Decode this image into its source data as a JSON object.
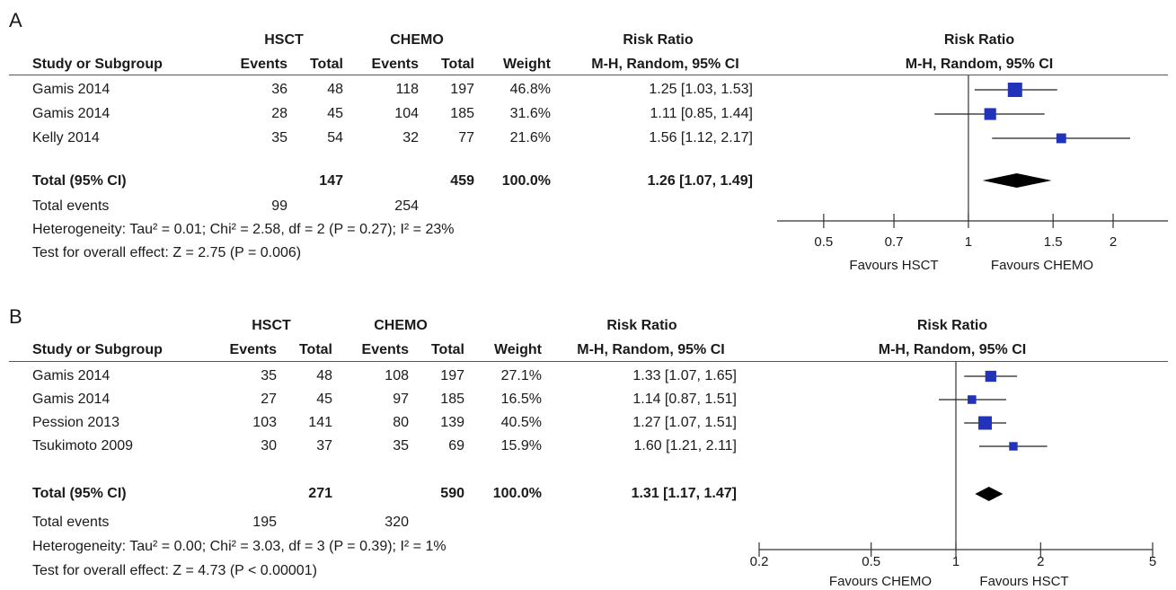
{
  "chart_data": [
    {
      "type": "forest",
      "panel_label": "A",
      "group_headers": [
        "HSCT",
        "CHEMO"
      ],
      "rr_header": "Risk Ratio",
      "rr_subheader": "M-H, Random, 95% CI",
      "columns": [
        "Study or Subgroup",
        "Events",
        "Total",
        "Events",
        "Total",
        "Weight",
        "M-H, Random, 95% CI"
      ],
      "plot_header": "Risk Ratio",
      "plot_subheader": "M-H, Random, 95% CI",
      "studies": [
        {
          "name": "Gamis 2014",
          "events1": "36",
          "total1": "48",
          "events2": "118",
          "total2": "197",
          "weight": "46.8%",
          "ci_text": "1.25 [1.03, 1.53]",
          "rr": 1.25,
          "lo": 1.03,
          "hi": 1.53,
          "w": 46.8
        },
        {
          "name": "Gamis 2014",
          "events1": "28",
          "total1": "45",
          "events2": "104",
          "total2": "185",
          "weight": "31.6%",
          "ci_text": "1.11 [0.85, 1.44]",
          "rr": 1.11,
          "lo": 0.85,
          "hi": 1.44,
          "w": 31.6
        },
        {
          "name": "Kelly 2014",
          "events1": "35",
          "total1": "54",
          "events2": "32",
          "total2": "77",
          "weight": "21.6%",
          "ci_text": "1.56 [1.12, 2.17]",
          "rr": 1.56,
          "lo": 1.12,
          "hi": 2.17,
          "w": 21.6
        }
      ],
      "total": {
        "label": "Total (95% CI)",
        "total1": "147",
        "total2": "459",
        "weight": "100.0%",
        "ci_text": "1.26 [1.07, 1.49]",
        "rr": 1.26,
        "lo": 1.07,
        "hi": 1.49
      },
      "total_events": {
        "label": "Total events",
        "events1": "99",
        "events2": "254"
      },
      "heterogeneity": "Heterogeneity: Tau² = 0.01; Chi² = 2.58, df = 2 (P = 0.27); I² = 23%",
      "overall_effect": "Test for overall effect: Z = 2.75 (P = 0.006)",
      "axis": {
        "scale": "log",
        "min": 0.4,
        "max": 2.6,
        "ticks": [
          0.5,
          0.7,
          1,
          1.5,
          2
        ],
        "tick_labels": [
          "0.5",
          "0.7",
          "1",
          "1.5",
          "2"
        ]
      },
      "favours_left": "Favours HSCT",
      "favours_right": "Favours CHEMO",
      "marker_color": "#2233bb"
    },
    {
      "type": "forest",
      "panel_label": "B",
      "group_headers": [
        "HSCT",
        "CHEMO"
      ],
      "rr_header": "Risk Ratio",
      "rr_subheader": "M-H, Random, 95% CI",
      "columns": [
        "Study or Subgroup",
        "Events",
        "Total",
        "Events",
        "Total",
        "Weight",
        "M-H, Random, 95% CI"
      ],
      "plot_header": "Risk Ratio",
      "plot_subheader": "M-H, Random, 95% CI",
      "studies": [
        {
          "name": "Gamis 2014",
          "events1": "35",
          "total1": "48",
          "events2": "108",
          "total2": "197",
          "weight": "27.1%",
          "ci_text": "1.33 [1.07, 1.65]",
          "rr": 1.33,
          "lo": 1.07,
          "hi": 1.65,
          "w": 27.1
        },
        {
          "name": "Gamis 2014",
          "events1": "27",
          "total1": "45",
          "events2": "97",
          "total2": "185",
          "weight": "16.5%",
          "ci_text": "1.14 [0.87, 1.51]",
          "rr": 1.14,
          "lo": 0.87,
          "hi": 1.51,
          "w": 16.5
        },
        {
          "name": "Pession 2013",
          "events1": "103",
          "total1": "141",
          "events2": "80",
          "total2": "139",
          "weight": "40.5%",
          "ci_text": "1.27 [1.07, 1.51]",
          "rr": 1.27,
          "lo": 1.07,
          "hi": 1.51,
          "w": 40.5
        },
        {
          "name": "Tsukimoto 2009",
          "events1": "30",
          "total1": "37",
          "events2": "35",
          "total2": "69",
          "weight": "15.9%",
          "ci_text": "1.60 [1.21, 2.11]",
          "rr": 1.6,
          "lo": 1.21,
          "hi": 2.11,
          "w": 15.9
        }
      ],
      "total": {
        "label": "Total (95% CI)",
        "total1": "271",
        "total2": "590",
        "weight": "100.0%",
        "ci_text": "1.31 [1.17, 1.47]",
        "rr": 1.31,
        "lo": 1.17,
        "hi": 1.47
      },
      "total_events": {
        "label": "Total events",
        "events1": "195",
        "events2": "320"
      },
      "heterogeneity": "Heterogeneity: Tau² = 0.00; Chi² = 3.03, df = 3 (P = 0.39); I² = 1%",
      "overall_effect": "Test for overall effect: Z = 4.73 (P < 0.00001)",
      "axis": {
        "scale": "log",
        "min": 0.2,
        "max": 5,
        "ticks": [
          0.2,
          0.5,
          1,
          2,
          5
        ],
        "tick_labels": [
          "0.2",
          "0.5",
          "1",
          "2",
          "5"
        ]
      },
      "favours_left": "Favours CHEMO",
      "favours_right": "Favours HSCT",
      "marker_color": "#2233bb"
    }
  ]
}
